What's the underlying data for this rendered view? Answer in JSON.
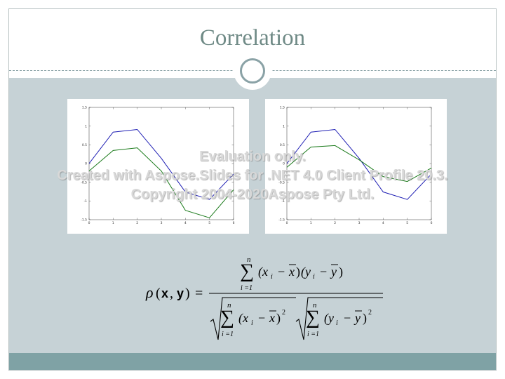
{
  "slide": {
    "title": "Correlation"
  },
  "watermark": {
    "line1": "Evaluation only.",
    "line2": "Created with Aspose.Slides for .NET 4.0 Client Profile 20.3.",
    "line3": "Copyright 2004-2020Aspose Pty Ltd."
  },
  "chart_data": [
    {
      "type": "line",
      "x": [
        0,
        1,
        2,
        3,
        4,
        5,
        6
      ],
      "xlim": [
        0,
        6
      ],
      "ylim": [
        -1.5,
        1.5
      ],
      "xticks": [
        0,
        1,
        2,
        3,
        4,
        5,
        6
      ],
      "yticks": [
        -1.5,
        -1,
        -0.5,
        0,
        0.5,
        1,
        1.5
      ],
      "xtick_labels": [
        "0",
        "1",
        "2",
        "3",
        "4",
        "5",
        "6"
      ],
      "ytick_labels": [
        "-1.5",
        "-1",
        "-0.5",
        "0",
        "0.5",
        "1",
        "1.5"
      ],
      "series": [
        {
          "values": [
            0.0,
            0.84,
            0.91,
            0.14,
            -0.76,
            -0.96,
            -0.28
          ],
          "color": "#1f1fb4"
        },
        {
          "values": [
            -0.2,
            0.35,
            0.42,
            -0.2,
            -1.25,
            -1.45,
            -0.7
          ],
          "color": "#1a7a1a"
        }
      ]
    },
    {
      "type": "line",
      "x": [
        0,
        1,
        2,
        3,
        4,
        5,
        6
      ],
      "xlim": [
        0,
        6
      ],
      "ylim": [
        -1.5,
        1.5
      ],
      "xticks": [
        0,
        1,
        2,
        3,
        4,
        5,
        6
      ],
      "yticks": [
        -1.5,
        -1,
        -0.5,
        0,
        0.5,
        1,
        1.5
      ],
      "xtick_labels": [
        "0",
        "1",
        "2",
        "3",
        "4",
        "5",
        "6"
      ],
      "ytick_labels": [
        "-1.5",
        "-1",
        "-0.5",
        "0",
        "0.5",
        "1",
        "1.5"
      ],
      "series": [
        {
          "values": [
            0.0,
            0.84,
            0.91,
            0.14,
            -0.76,
            -0.96,
            -0.28
          ],
          "color": "#1f1fb4"
        },
        {
          "values": [
            -0.1,
            0.44,
            0.48,
            0.1,
            -0.35,
            -0.48,
            -0.12
          ],
          "color": "#1a7a1a"
        }
      ]
    }
  ],
  "formula": {
    "rho": "ρ",
    "open_paren": "(",
    "bold_x": "x",
    "comma": ",",
    "bold_y": "y",
    "close_paren": ")",
    "equals": "=",
    "sum": "∑",
    "upper_limit": "n",
    "lower_limit": "i =1",
    "numerator_term_x": "(x",
    "subscript_i": "i",
    "minus": "−",
    "xbar": "x",
    "close_x": ")",
    "numerator_term_y": "(y",
    "ybar": "y",
    "close_y": ")",
    "squared": "2",
    "radical": "√"
  }
}
